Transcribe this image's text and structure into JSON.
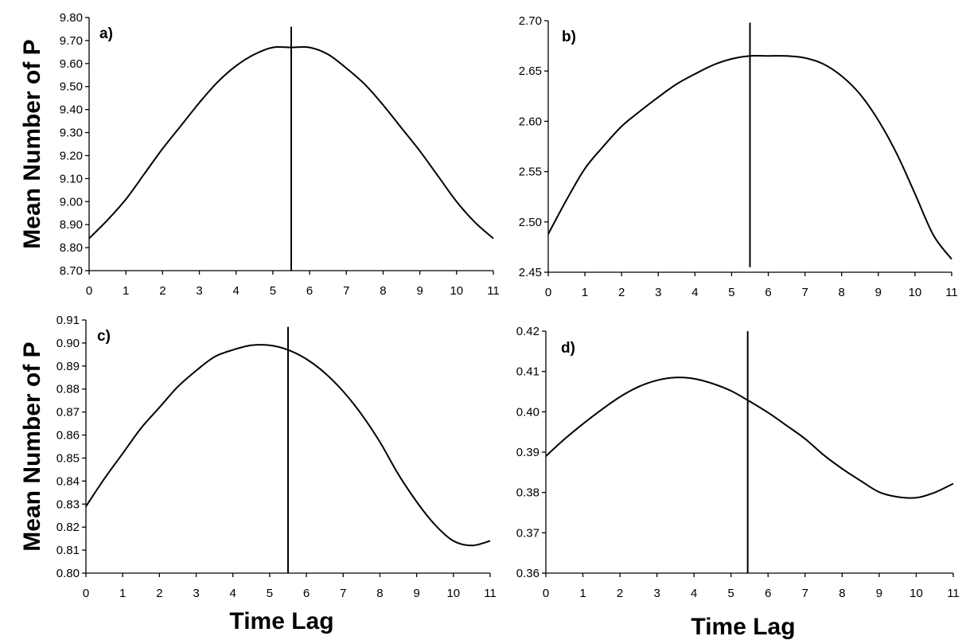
{
  "chart_data": [
    {
      "type": "line",
      "panel_label": "a)",
      "ylabel": "Mean Number of P",
      "xlabel": "",
      "x_ticks": [
        "0",
        "1",
        "2",
        "3",
        "4",
        "5",
        "6",
        "7",
        "8",
        "9",
        "10",
        "11"
      ],
      "y_ticks": [
        "8.70",
        "8.80",
        "8.90",
        "9.00",
        "9.10",
        "9.20",
        "9.30",
        "9.40",
        "9.50",
        "9.60",
        "9.70",
        "9.80"
      ],
      "xlim": [
        0,
        11
      ],
      "ylim": [
        8.7,
        9.8
      ],
      "vline_x": 5.5,
      "vline_y": [
        8.7,
        9.76
      ],
      "x": [
        0,
        0.5,
        1,
        1.5,
        2,
        2.5,
        3,
        3.5,
        4,
        4.5,
        5,
        5.5,
        6,
        6.5,
        7,
        7.5,
        8,
        8.5,
        9,
        9.5,
        10,
        10.5,
        11
      ],
      "y": [
        8.84,
        8.92,
        9.01,
        9.12,
        9.23,
        9.33,
        9.43,
        9.52,
        9.59,
        9.64,
        9.67,
        9.67,
        9.67,
        9.64,
        9.58,
        9.51,
        9.42,
        9.32,
        9.22,
        9.11,
        9.0,
        8.91,
        8.84
      ],
      "grid": false,
      "legend": "none"
    },
    {
      "type": "line",
      "panel_label": "b)",
      "ylabel": "",
      "xlabel": "",
      "x_ticks": [
        "0",
        "1",
        "2",
        "3",
        "4",
        "5",
        "6",
        "7",
        "8",
        "9",
        "10",
        "11"
      ],
      "y_ticks": [
        "2.45",
        "2.50",
        "2.55",
        "2.60",
        "2.65",
        "2.70"
      ],
      "xlim": [
        0,
        11
      ],
      "ylim": [
        2.45,
        2.7
      ],
      "vline_x": 5.5,
      "vline_y": [
        2.455,
        2.698
      ],
      "x": [
        0,
        0.5,
        1,
        1.5,
        2,
        2.5,
        3,
        3.5,
        4,
        4.5,
        5,
        5.5,
        6,
        6.5,
        7,
        7.5,
        8,
        8.5,
        9,
        9.5,
        10,
        10.5,
        11
      ],
      "y": [
        2.488,
        2.522,
        2.553,
        2.575,
        2.595,
        2.61,
        2.624,
        2.637,
        2.647,
        2.656,
        2.662,
        2.665,
        2.665,
        2.665,
        2.663,
        2.657,
        2.645,
        2.627,
        2.601,
        2.568,
        2.528,
        2.487,
        2.463
      ],
      "grid": false,
      "legend": "none"
    },
    {
      "type": "line",
      "panel_label": "c)",
      "ylabel": "Mean Number of P",
      "xlabel": "Time Lag",
      "x_ticks": [
        "0",
        "1",
        "2",
        "3",
        "4",
        "5",
        "6",
        "7",
        "8",
        "9",
        "10",
        "11"
      ],
      "y_ticks": [
        "0.80",
        "0.81",
        "0.82",
        "0.83",
        "0.84",
        "0.85",
        "0.86",
        "0.87",
        "0.88",
        "0.89",
        "0.90",
        "0.91"
      ],
      "xlim": [
        0,
        11
      ],
      "ylim": [
        0.8,
        0.91
      ],
      "vline_x": 5.5,
      "vline_y": [
        0.8,
        0.907
      ],
      "x": [
        0,
        0.5,
        1,
        1.5,
        2,
        2.5,
        3,
        3.5,
        4,
        4.5,
        5,
        5.5,
        6,
        6.5,
        7,
        7.5,
        8,
        8.5,
        9,
        9.5,
        10,
        10.5,
        11
      ],
      "y": [
        0.829,
        0.841,
        0.852,
        0.863,
        0.872,
        0.881,
        0.888,
        0.894,
        0.897,
        0.899,
        0.899,
        0.897,
        0.893,
        0.887,
        0.879,
        0.869,
        0.857,
        0.843,
        0.831,
        0.821,
        0.814,
        0.812,
        0.814
      ],
      "grid": false,
      "legend": "none"
    },
    {
      "type": "line",
      "panel_label": "d)",
      "ylabel": "",
      "xlabel": "Time Lag",
      "x_ticks": [
        "0",
        "1",
        "2",
        "3",
        "4",
        "5",
        "6",
        "7",
        "8",
        "9",
        "10",
        "11"
      ],
      "y_ticks": [
        "0.36",
        "0.37",
        "0.38",
        "0.39",
        "0.40",
        "0.41",
        "0.42"
      ],
      "xlim": [
        0,
        11
      ],
      "ylim": [
        0.36,
        0.42
      ],
      "vline_x": 5.45,
      "vline_y": [
        0.36,
        0.42
      ],
      "x": [
        0,
        0.5,
        1,
        1.5,
        2,
        2.5,
        3,
        3.5,
        4,
        4.5,
        5,
        5.5,
        6,
        6.5,
        7,
        7.5,
        8,
        8.5,
        9,
        9.5,
        10,
        10.5,
        11
      ],
      "y": [
        0.389,
        0.3932,
        0.397,
        0.4005,
        0.4037,
        0.4062,
        0.4078,
        0.4085,
        0.4082,
        0.407,
        0.4052,
        0.4026,
        0.3998,
        0.3966,
        0.3933,
        0.3893,
        0.3859,
        0.3829,
        0.3801,
        0.3789,
        0.3787,
        0.38,
        0.3822
      ],
      "grid": false,
      "legend": "none"
    }
  ]
}
